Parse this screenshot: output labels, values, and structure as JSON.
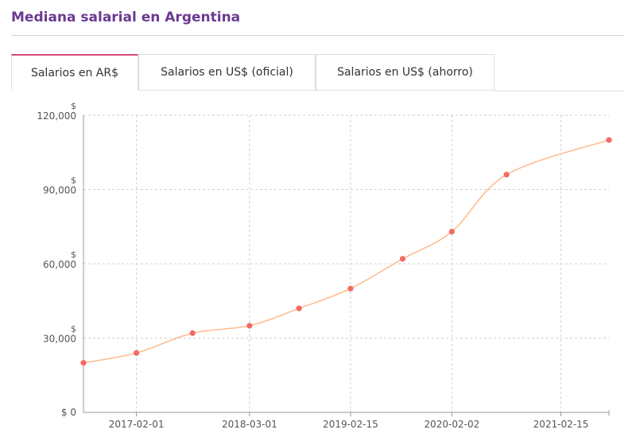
{
  "title": "Mediana salarial en Argentina",
  "tabs": [
    {
      "label": "Salarios en AR$",
      "active": true
    },
    {
      "label": "Salarios en US$ (oficial)",
      "active": false
    },
    {
      "label": "Salarios en US$ (ahorro)",
      "active": false
    }
  ],
  "colors": {
    "title": "#6b3a91",
    "tab_accent": "#d9477a",
    "line": "#ffb98a",
    "marker": "#f26b62",
    "grid": "#cfcfcf"
  },
  "chart_data": {
    "type": "line",
    "grid": true,
    "ylim": [
      0,
      120000
    ],
    "y_ticks": [
      {
        "value": 0,
        "unit": "$",
        "label": "0"
      },
      {
        "value": 30000,
        "unit": "$",
        "label": "30,000"
      },
      {
        "value": 60000,
        "unit": "$",
        "label": "60,000"
      },
      {
        "value": 90000,
        "unit": "$",
        "label": "90,000"
      },
      {
        "value": 120000,
        "unit": "$",
        "label": "120,000"
      }
    ],
    "x_range": [
      "2016-08-01",
      "2021-08-01"
    ],
    "x_ticks": [
      "2017-02-01",
      "2018-03-01",
      "2019-02-15",
      "2020-02-02",
      "2021-02-15"
    ],
    "series": [
      {
        "points": [
          {
            "x": "2016-08-01",
            "y": 20000
          },
          {
            "x": "2017-02-01",
            "y": 24000
          },
          {
            "x": "2017-08-15",
            "y": 32000
          },
          {
            "x": "2018-03-01",
            "y": 35000
          },
          {
            "x": "2018-08-20",
            "y": 42000
          },
          {
            "x": "2019-02-15",
            "y": 50000
          },
          {
            "x": "2019-08-15",
            "y": 62000
          },
          {
            "x": "2020-02-02",
            "y": 73000
          },
          {
            "x": "2020-08-10",
            "y": 96000
          },
          {
            "x": "2021-08-01",
            "y": 110000
          }
        ]
      }
    ]
  }
}
